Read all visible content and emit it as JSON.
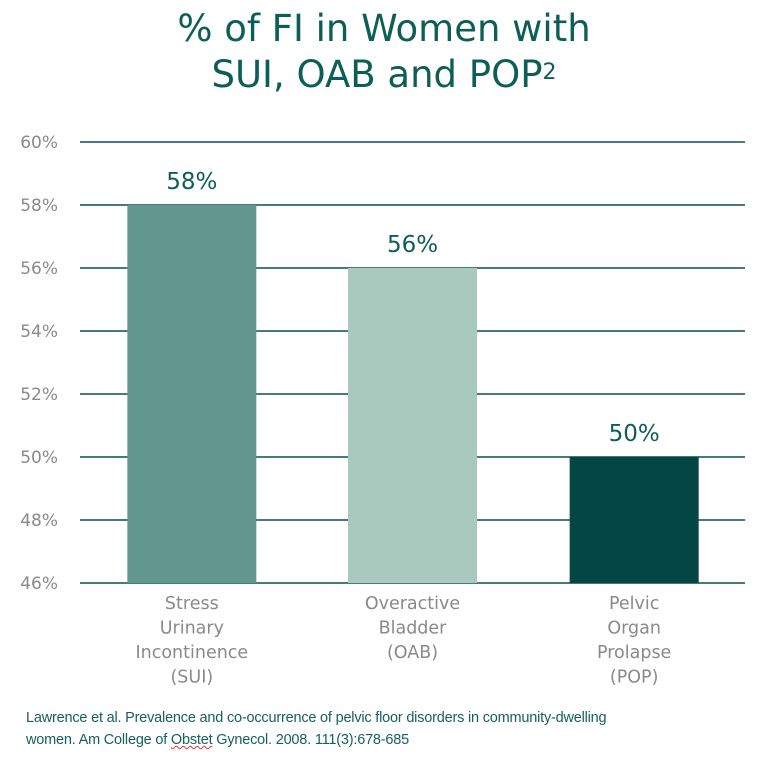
{
  "chart_data": {
    "type": "bar",
    "title_line1": "% of FI in Women with",
    "title_line2": "SUI, OAB and POP",
    "title_superscript": "2",
    "categories": [
      [
        "Stress",
        "Urinary",
        "Incontinence",
        "(SUI)"
      ],
      [
        "Overactive",
        "Bladder",
        "(OAB)"
      ],
      [
        "Pelvic",
        "Organ",
        "Prolapse",
        "(POP)"
      ]
    ],
    "values": [
      58,
      56,
      50
    ],
    "data_labels": [
      "58%",
      "56%",
      "50%"
    ],
    "colors": [
      "#62978f",
      "#a9c9bf",
      "#034644"
    ],
    "ylim": [
      46,
      60
    ],
    "yticks": [
      46,
      48,
      50,
      52,
      54,
      56,
      58,
      60
    ],
    "ytick_labels": [
      "46%",
      "48%",
      "50%",
      "52%",
      "54%",
      "56%",
      "58%",
      "60%"
    ],
    "grid": true,
    "grid_color": "#0b4f4a",
    "label_color": "#0e5e58",
    "axis_text_color": "#8a8a8a"
  },
  "citation": {
    "line1": "Lawrence et al. Prevalence and co-occurrence of pelvic floor disorders in community-dwelling",
    "line2_a": "women.  Am College of ",
    "line2_b": "Obstet",
    "line2_c": " Gynecol. 2008. 111(3):678-685"
  }
}
